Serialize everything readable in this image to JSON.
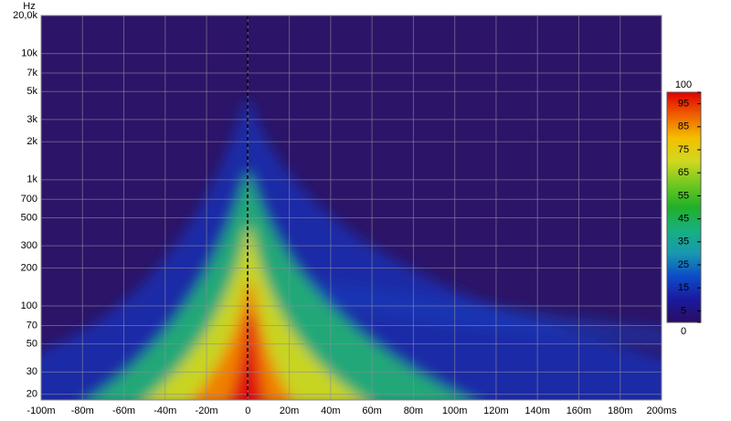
{
  "chart_data": {
    "type": "spectrogram",
    "y_label": "Hz",
    "xlim": [
      -100,
      200
    ],
    "xticks": [
      {
        "value": -100,
        "label": "-100m"
      },
      {
        "value": -80,
        "label": "-80m"
      },
      {
        "value": -60,
        "label": "-60m"
      },
      {
        "value": -40,
        "label": "-40m"
      },
      {
        "value": -20,
        "label": "-20m"
      },
      0,
      {
        "value": 20,
        "label": "20m"
      },
      {
        "value": 40,
        "label": "40m"
      },
      {
        "value": 60,
        "label": "60m"
      },
      {
        "value": 80,
        "label": "80m"
      },
      {
        "value": 100,
        "label": "100m"
      },
      {
        "value": 120,
        "label": "120m"
      },
      {
        "value": 140,
        "label": "140m"
      },
      {
        "value": 160,
        "label": "160m"
      },
      {
        "value": 180,
        "label": "180m"
      },
      {
        "value": 200,
        "label": "200ms"
      }
    ],
    "ylim": [
      18,
      20000
    ],
    "y_log_scale": true,
    "yticks": [
      20,
      30,
      50,
      70,
      100,
      200,
      300,
      500,
      700,
      {
        "value": 1000,
        "label": "1k"
      },
      {
        "value": 2000,
        "label": "2k"
      },
      {
        "value": 3000,
        "label": "3k"
      },
      {
        "value": 5000,
        "label": "5k"
      },
      {
        "value": 7000,
        "label": "7k"
      },
      {
        "value": 10000,
        "label": "10k"
      },
      {
        "value": 20000,
        "label": "20,0k"
      }
    ],
    "grid": true,
    "colorbar": {
      "clim": [
        0,
        100
      ],
      "ticks": [
        0,
        5,
        15,
        25,
        35,
        45,
        55,
        65,
        75,
        85,
        95,
        100
      ],
      "colormap": [
        "#2a0c62",
        "#1a1aa0",
        "#0c4cc8",
        "#1898b0",
        "#18b080",
        "#20b028",
        "#70c820",
        "#d0d820",
        "#f4c000",
        "#f06000",
        "#e00000"
      ]
    }
  }
}
